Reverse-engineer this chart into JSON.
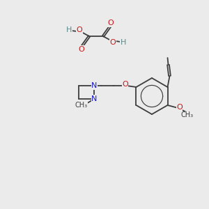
{
  "bg_color": "#ebebeb",
  "bond_color": "#3d3d3d",
  "n_color": "#1515cc",
  "o_color": "#cc1515",
  "h_color": "#5a8a8a",
  "figsize": [
    3.0,
    3.0
  ],
  "dpi": 100,
  "xlim": [
    0,
    300
  ],
  "ylim": [
    0,
    300
  ]
}
